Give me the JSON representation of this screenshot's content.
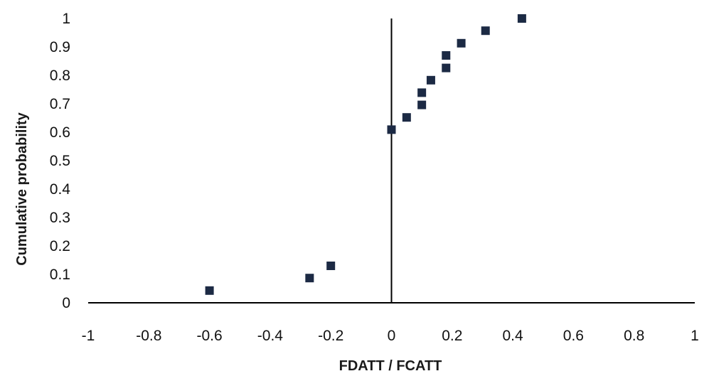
{
  "chart_data": {
    "type": "scatter",
    "title": "",
    "xlabel": "FDATT / FCATT",
    "ylabel": "Cumulative probability",
    "xlim": [
      -1,
      1
    ],
    "ylim": [
      0,
      1
    ],
    "x_ticks": [
      "-1",
      "-0.8",
      "-0.6",
      "-0.4",
      "-0.2",
      "0",
      "0.2",
      "0.4",
      "0.6",
      "0.8",
      "1"
    ],
    "y_ticks": [
      "0",
      "0.1",
      "0.2",
      "0.3",
      "0.4",
      "0.5",
      "0.6",
      "0.7",
      "0.8",
      "0.9",
      "1"
    ],
    "grid": false,
    "legend": "none",
    "marker": "square",
    "marker_color": "#1c2a44",
    "axis_color": "#000000",
    "series": [
      {
        "points": [
          {
            "x": -0.6,
            "y": 0.043
          },
          {
            "x": -0.27,
            "y": 0.087
          },
          {
            "x": -0.2,
            "y": 0.13
          },
          {
            "x": 0.0,
            "y": 0.609
          },
          {
            "x": 0.05,
            "y": 0.652
          },
          {
            "x": 0.1,
            "y": 0.696
          },
          {
            "x": 0.1,
            "y": 0.739
          },
          {
            "x": 0.13,
            "y": 0.783
          },
          {
            "x": 0.18,
            "y": 0.826
          },
          {
            "x": 0.18,
            "y": 0.87
          },
          {
            "x": 0.23,
            "y": 0.913
          },
          {
            "x": 0.31,
            "y": 0.957
          },
          {
            "x": 0.43,
            "y": 1.0
          }
        ]
      }
    ]
  }
}
